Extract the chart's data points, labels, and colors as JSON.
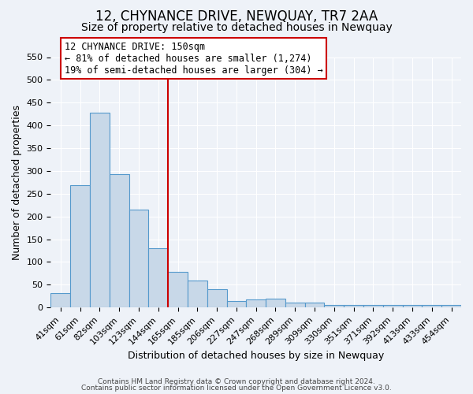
{
  "title1": "12, CHYNANCE DRIVE, NEWQUAY, TR7 2AA",
  "title2": "Size of property relative to detached houses in Newquay",
  "xlabel": "Distribution of detached houses by size in Newquay",
  "ylabel": "Number of detached properties",
  "categories": [
    "41sqm",
    "61sqm",
    "82sqm",
    "103sqm",
    "123sqm",
    "144sqm",
    "165sqm",
    "185sqm",
    "206sqm",
    "227sqm",
    "247sqm",
    "268sqm",
    "289sqm",
    "309sqm",
    "330sqm",
    "351sqm",
    "371sqm",
    "392sqm",
    "413sqm",
    "433sqm",
    "454sqm"
  ],
  "values": [
    32,
    268,
    428,
    293,
    215,
    130,
    79,
    59,
    40,
    15,
    18,
    20,
    10,
    10,
    5,
    5,
    5,
    5,
    5,
    5,
    5
  ],
  "bar_color": "#c8d8e8",
  "bar_edge_color": "#5599cc",
  "vline_x": 5.5,
  "vline_color": "#cc0000",
  "ylim": [
    0,
    550
  ],
  "yticks": [
    0,
    50,
    100,
    150,
    200,
    250,
    300,
    350,
    400,
    450,
    500,
    550
  ],
  "annotation_title": "12 CHYNANCE DRIVE: 150sqm",
  "annotation_line1": "← 81% of detached houses are smaller (1,274)",
  "annotation_line2": "19% of semi-detached houses are larger (304) →",
  "annotation_box_color": "#ffffff",
  "annotation_box_edge": "#cc0000",
  "bg_color": "#eef2f8",
  "plot_bg_color": "#eef2f8",
  "footer1": "Contains HM Land Registry data © Crown copyright and database right 2024.",
  "footer2": "Contains public sector information licensed under the Open Government Licence v3.0.",
  "title1_fontsize": 12,
  "title2_fontsize": 10,
  "tick_fontsize": 8
}
